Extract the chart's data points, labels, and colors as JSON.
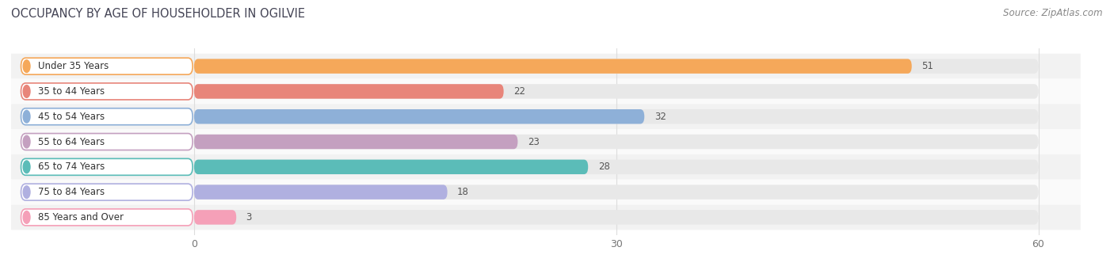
{
  "title": "OCCUPANCY BY AGE OF HOUSEHOLDER IN OGILVIE",
  "source": "Source: ZipAtlas.com",
  "categories": [
    "Under 35 Years",
    "35 to 44 Years",
    "45 to 54 Years",
    "55 to 64 Years",
    "65 to 74 Years",
    "75 to 84 Years",
    "85 Years and Over"
  ],
  "values": [
    51,
    22,
    32,
    23,
    28,
    18,
    3
  ],
  "bar_colors": [
    "#F5A85A",
    "#E8857A",
    "#8EB0D8",
    "#C4A0C0",
    "#5BBCB8",
    "#B0B0E0",
    "#F5A0B8"
  ],
  "bar_bg_color": "#E8E8E8",
  "xlim_max": 60,
  "xticks": [
    0,
    30,
    60
  ],
  "title_fontsize": 10.5,
  "source_fontsize": 8.5,
  "label_fontsize": 8.5,
  "value_fontsize": 8.5,
  "background_color": "#FFFFFF",
  "bar_height": 0.58,
  "row_bg_odd": "#F2F2F2",
  "row_bg_even": "#FAFAFA",
  "grid_color": "#DDDDDD",
  "label_box_color": "#FFFFFF"
}
